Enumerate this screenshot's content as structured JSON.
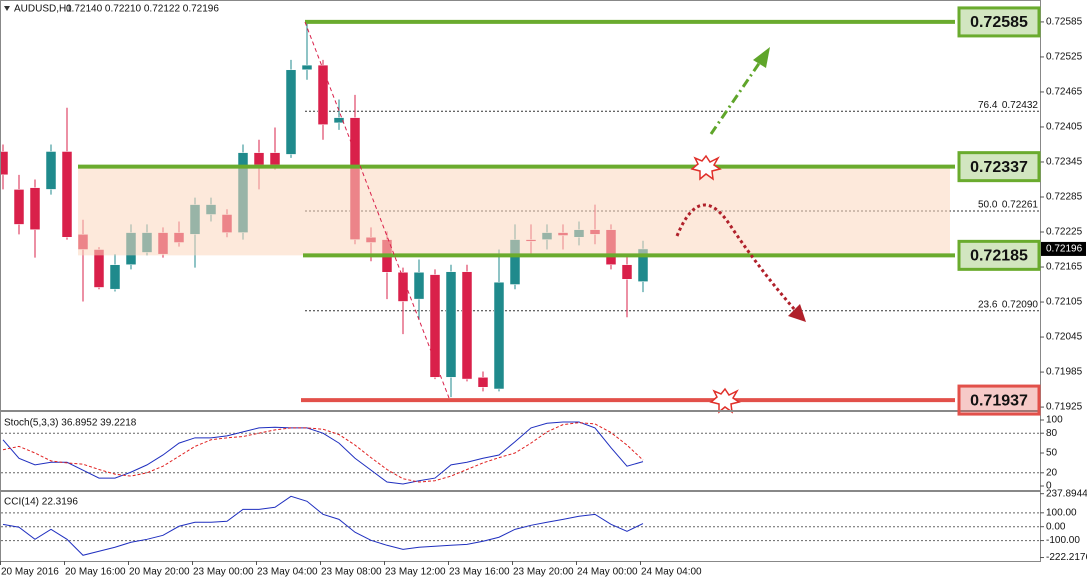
{
  "chart_data": {
    "type": "candlestick",
    "title": "AUDUSD,H1",
    "ohlc_text": "0.72140 0.72210 0.72122 0.72196",
    "up_color": "#1f8a8c",
    "down_color": "#d9204a",
    "ohlc": [
      [
        0.72363,
        0.72375,
        0.72298,
        0.72323
      ],
      [
        0.72298,
        0.72323,
        0.72221,
        0.72238
      ],
      [
        0.72301,
        0.72315,
        0.72181,
        0.72229
      ],
      [
        0.72298,
        0.72375,
        0.72289,
        0.72363
      ],
      [
        0.72363,
        0.72438,
        0.72212,
        0.72216
      ],
      [
        0.72221,
        0.72246,
        0.72106,
        0.72195
      ],
      [
        0.72195,
        0.72199,
        0.72127,
        0.7213
      ],
      [
        0.72127,
        0.72187,
        0.72123,
        0.72169
      ],
      [
        0.72169,
        0.72238,
        0.72161,
        0.72224
      ],
      [
        0.7219,
        0.72238,
        0.72185,
        0.72224
      ],
      [
        0.72224,
        0.72233,
        0.72181,
        0.72187
      ],
      [
        0.72224,
        0.72243,
        0.722,
        0.72207
      ],
      [
        0.72221,
        0.72284,
        0.72164,
        0.72272
      ],
      [
        0.72255,
        0.72284,
        0.72243,
        0.72272
      ],
      [
        0.72255,
        0.72264,
        0.72216,
        0.72224
      ],
      [
        0.72224,
        0.72375,
        0.72212,
        0.72361
      ],
      [
        0.72361,
        0.72383,
        0.72298,
        0.7234
      ],
      [
        0.72361,
        0.72404,
        0.72332,
        0.7234
      ],
      [
        0.72358,
        0.7252,
        0.72352,
        0.72503
      ],
      [
        0.72503,
        0.72585,
        0.72486,
        0.72511
      ],
      [
        0.72511,
        0.7252,
        0.72383,
        0.72409
      ],
      [
        0.72412,
        0.72452,
        0.724,
        0.72421
      ],
      [
        0.72421,
        0.7246,
        0.72204,
        0.72212
      ],
      [
        0.72216,
        0.72233,
        0.72175,
        0.72207
      ],
      [
        0.72212,
        0.72226,
        0.7211,
        0.72156
      ],
      [
        0.72156,
        0.72164,
        0.7205,
        0.72106
      ],
      [
        0.7211,
        0.72178,
        0.72075,
        0.72156
      ],
      [
        0.72152,
        0.72161,
        0.71973,
        0.71976
      ],
      [
        0.71976,
        0.72169,
        0.71942,
        0.72157
      ],
      [
        0.72157,
        0.72169,
        0.71969,
        0.71973
      ],
      [
        0.71976,
        0.71986,
        0.71952,
        0.71959
      ],
      [
        0.71956,
        0.72195,
        0.71952,
        0.72139
      ],
      [
        0.72135,
        0.72238,
        0.72127,
        0.72212
      ],
      [
        0.72212,
        0.72238,
        0.72187,
        0.72209
      ],
      [
        0.72212,
        0.72238,
        0.72195,
        0.72224
      ],
      [
        0.72224,
        0.72238,
        0.72195,
        0.72219
      ],
      [
        0.72216,
        0.72243,
        0.72202,
        0.72229
      ],
      [
        0.72229,
        0.72272,
        0.72204,
        0.72221
      ],
      [
        0.72229,
        0.72238,
        0.72161,
        0.72169
      ],
      [
        0.72169,
        0.72187,
        0.72079,
        0.72144
      ],
      [
        0.7214,
        0.7221,
        0.72122,
        0.72196
      ]
    ],
    "ylim": [
      0.7192,
      0.72614
    ],
    "yticks": [
      0.72585,
      0.72525,
      0.72465,
      0.72405,
      0.72345,
      0.72285,
      0.72225,
      0.72165,
      0.72105,
      0.72045,
      0.71985,
      0.71925
    ],
    "time_labels": [
      "20 May 2016",
      "20 May 16:00",
      "20 May 20:00",
      "23 May 00:00",
      "23 May 04:00",
      "23 May 08:00",
      "23 May 12:00",
      "23 May 16:00",
      "23 May 20:00",
      "24 May 00:00",
      "24 May 04:00"
    ],
    "levels": [
      {
        "price": 0.72585,
        "color": "#6aab2e"
      },
      {
        "price": 0.72337,
        "color": "#6aab2e"
      },
      {
        "price": 0.72185,
        "color": "#6aab2e"
      },
      {
        "price": 0.71937,
        "color": "#e2504a"
      }
    ],
    "fib_levels": [
      {
        "ratio": "76.4",
        "price": 0.72432
      },
      {
        "ratio": "50.0",
        "price": 0.72261
      },
      {
        "ratio": "23.6",
        "price": {
          "value": 0.7209,
          "label": "0.72090"
        }
      }
    ],
    "indicators": [
      {
        "type": "line",
        "title": "Stoch(5,3,3) 36.8952 39.2218",
        "ylim": [
          0,
          100
        ],
        "yticks": [
          100,
          80,
          50,
          20,
          0
        ],
        "levels": [
          80,
          20
        ],
        "series": [
          {
            "color": "#1f2fbf",
            "dash": false,
            "values": [
              70,
              42,
              32,
              36,
              36,
              24,
              12,
              12,
              21,
              32,
              47,
              65,
              73,
              73,
              76,
              82,
              88,
              89,
              88,
              88,
              80,
              65,
              42,
              24,
              6,
              3,
              8,
              12,
              32,
              36,
              42,
              47,
              67,
              88,
              95,
              97,
              97,
              88,
              58,
              30,
              36.8952
            ]
          },
          {
            "color": "#e02020",
            "dash": true,
            "values": [
              55,
              60,
              50,
              38,
              35,
              33,
              25,
              18,
              15,
              20,
              30,
              45,
              60,
              70,
              73,
              75,
              80,
              85,
              88,
              88,
              86,
              78,
              62,
              43,
              25,
              11,
              6,
              8,
              15,
              25,
              35,
              43,
              50,
              65,
              82,
              93,
              96,
              94,
              81,
              62,
              39.2218
            ]
          }
        ]
      },
      {
        "type": "line",
        "title": "CCI(14) 22.3196",
        "ylim": [
          -240,
          250
        ],
        "yticks": [
          237.8944,
          {
            "value": 100,
            "label": "100.00"
          },
          {
            "value": 0,
            "label": "0.00"
          },
          {
            "value": -100,
            "label": "-100.00"
          },
          -222.2176
        ],
        "levels": [
          100,
          0,
          -100
        ],
        "series": [
          {
            "color": "#1f2fbf",
            "dash": false,
            "values": [
              17,
              -4,
              -91,
              -19,
              -91,
              -206,
              -177,
              -148,
              -112,
              -91,
              -62,
              3,
              32,
              32,
              39,
              125,
              125,
              140,
              219,
              183,
              89,
              53,
              -40,
              -98,
              -134,
              -163,
              -148,
              -141,
              -134,
              -127,
              -105,
              -76,
              -19,
              10,
              32,
              53,
              75,
              89,
              17,
              -33,
              22.3196
            ]
          }
        ]
      }
    ]
  }
}
